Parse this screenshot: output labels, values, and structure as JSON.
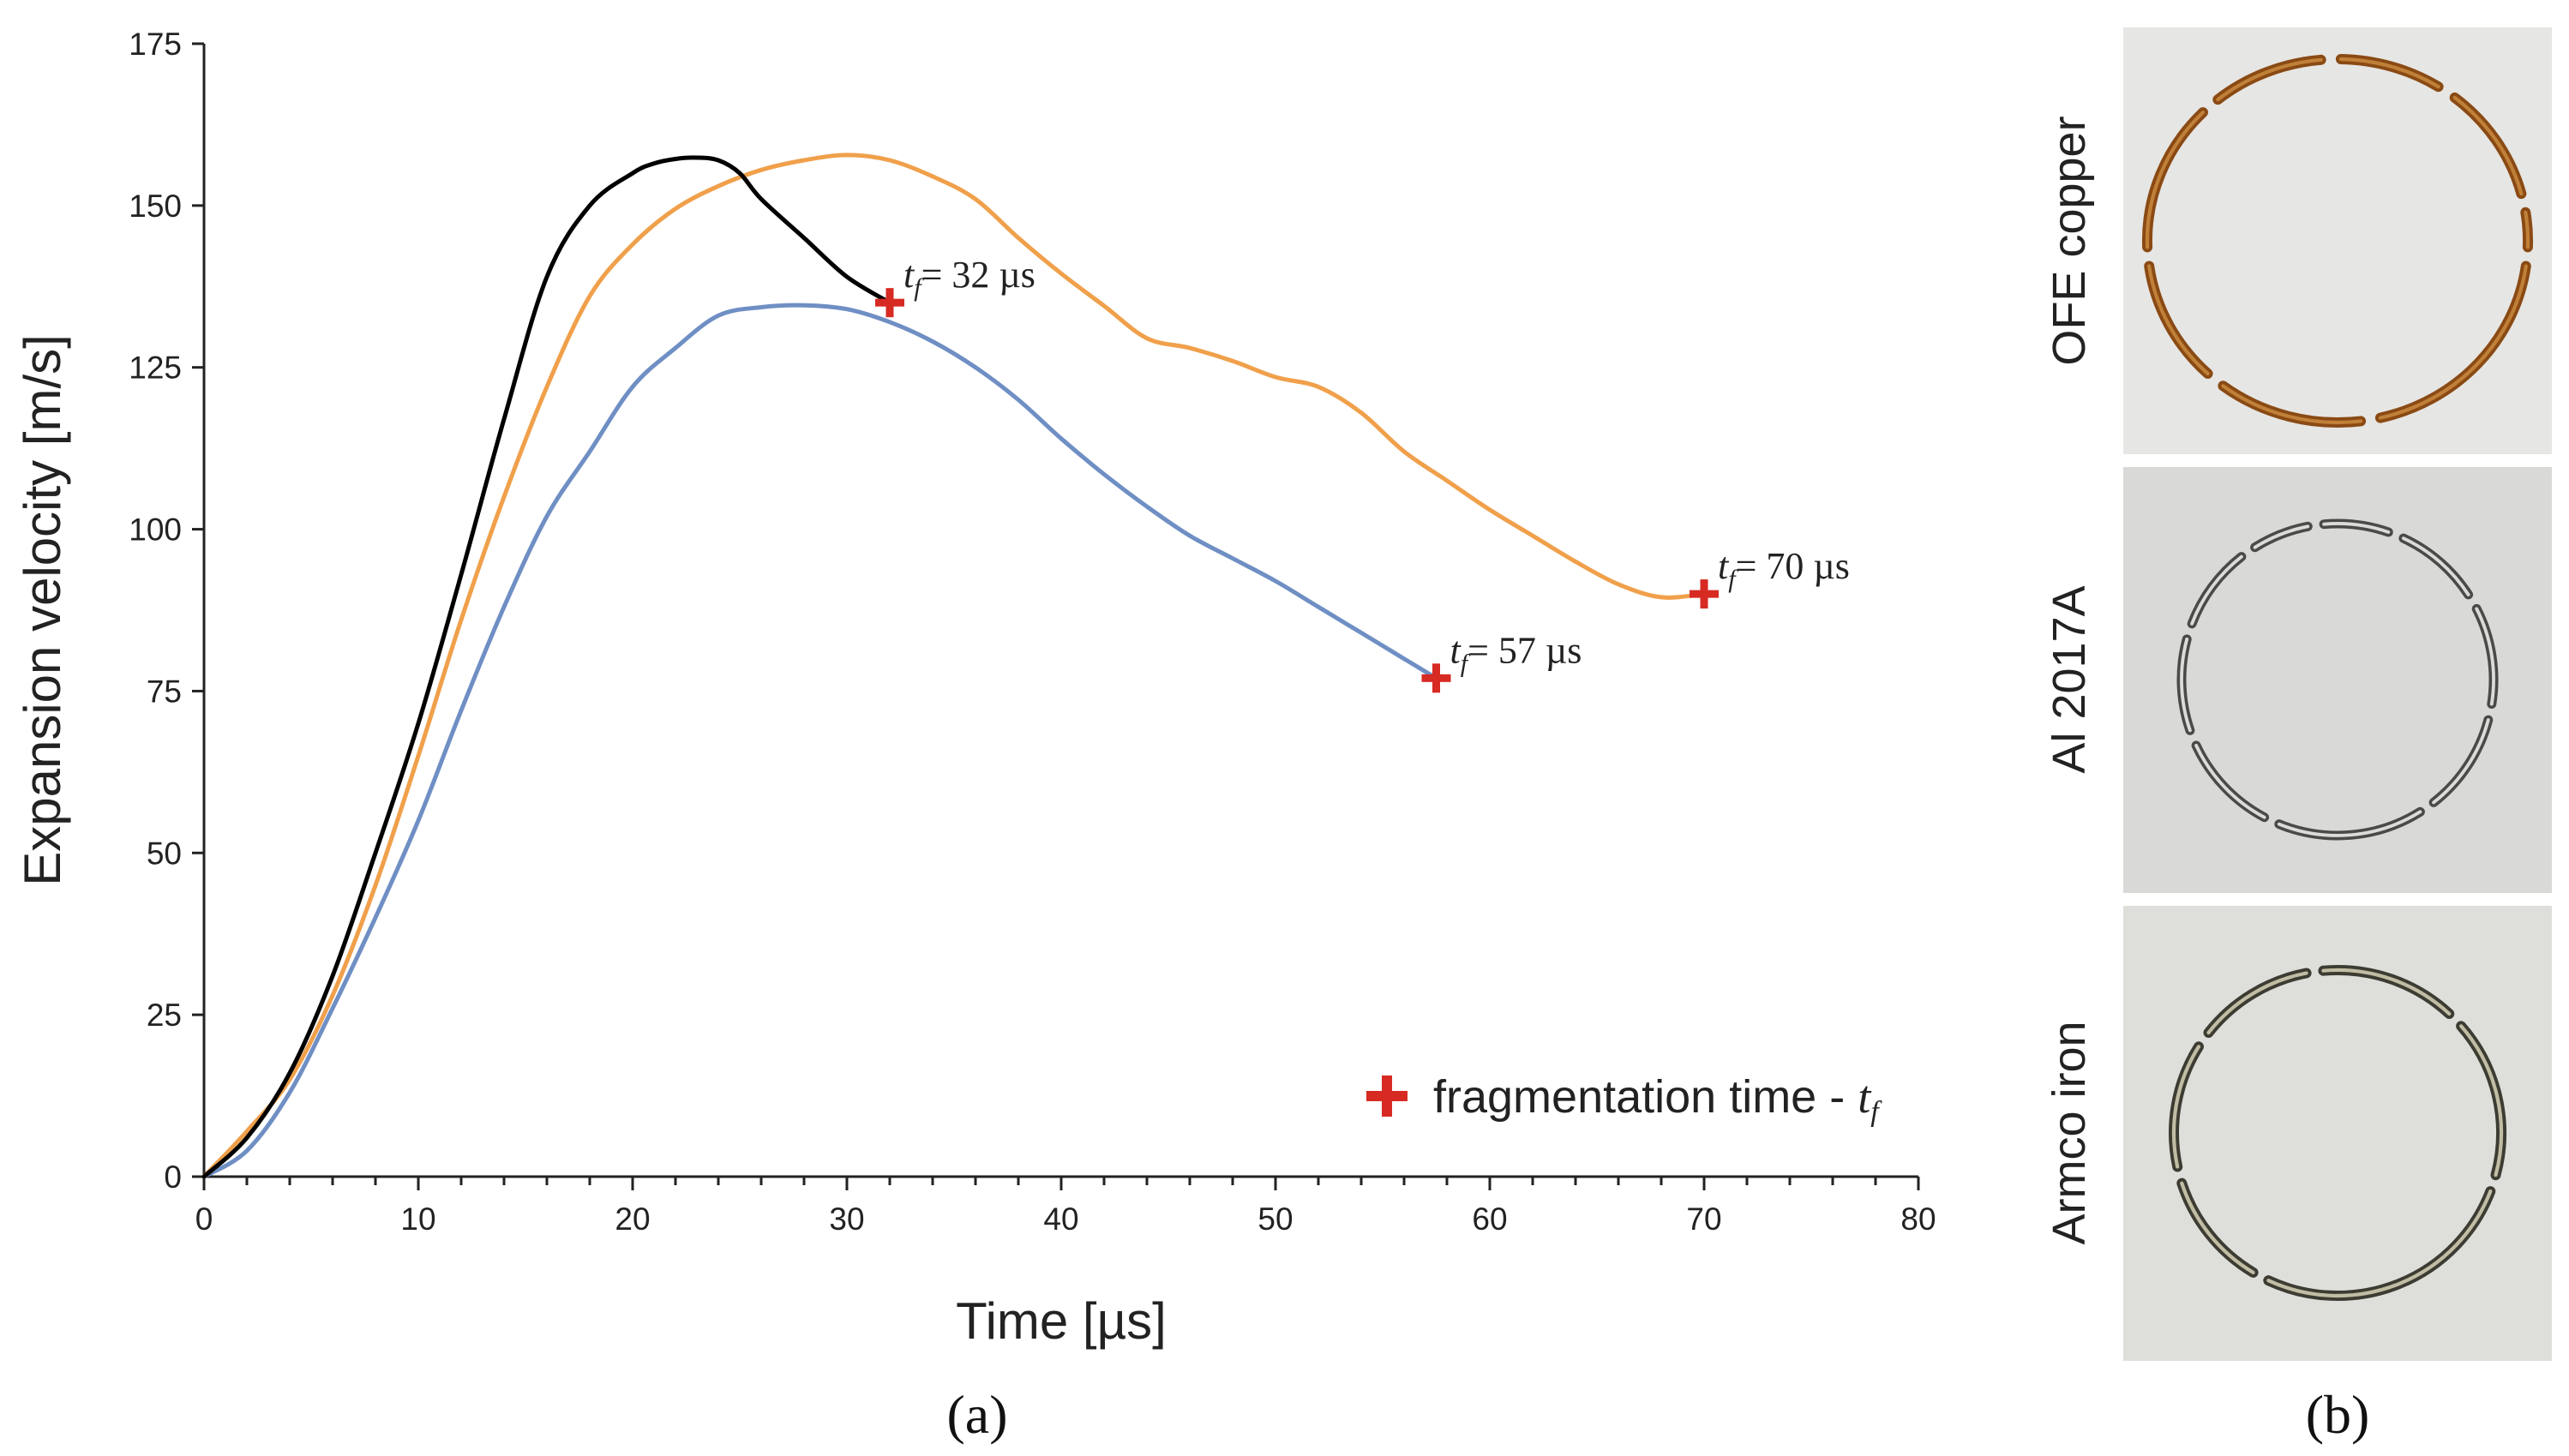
{
  "panel_labels": {
    "a": "(a)",
    "b": "(b)"
  },
  "chart_data": {
    "type": "line",
    "title": "",
    "xlabel": "Time [µs]",
    "ylabel": "Expansion velocity [m/s]",
    "xlim": [
      0,
      80
    ],
    "ylim": [
      0,
      175
    ],
    "xticks": [
      0,
      10,
      20,
      30,
      40,
      50,
      60,
      70,
      80
    ],
    "yticks": [
      0,
      25,
      50,
      75,
      100,
      125,
      150,
      175
    ],
    "xtick_labels": [
      "0",
      "10",
      "20",
      "30",
      "40",
      "50",
      "60",
      "70",
      "80"
    ],
    "ytick_labels": [
      "0",
      "25",
      "50",
      "75",
      "100",
      "125",
      "150",
      "175"
    ],
    "grid": false,
    "legend": {
      "position": "bottom-right",
      "marker": "+",
      "marker_color": "#d62a23",
      "label": "fragmentation time - ",
      "label_italic": "t",
      "label_sub": "f"
    },
    "series": [
      {
        "name": "OFE copper",
        "color": "#000000",
        "x": [
          0,
          2,
          4,
          6,
          8,
          10,
          12,
          14,
          16,
          18,
          20,
          21,
          22,
          23,
          24,
          25,
          26,
          28,
          30,
          32
        ],
        "y": [
          0,
          6,
          16,
          31,
          50,
          70,
          93,
          117,
          139,
          150,
          155,
          156.5,
          157.2,
          157.4,
          157,
          155,
          151,
          145,
          139,
          135
        ]
      },
      {
        "name": "Al 2017A",
        "color": "#f0a04b",
        "x": [
          0,
          2,
          4,
          6,
          8,
          10,
          12,
          14,
          16,
          18,
          20,
          22,
          24,
          26,
          28,
          30,
          32,
          34,
          36,
          38,
          40,
          42,
          44,
          46,
          48,
          50,
          52,
          54,
          56,
          58,
          60,
          62,
          64,
          66,
          68,
          70
        ],
        "y": [
          0,
          7,
          15,
          28,
          45,
          65,
          86,
          105,
          122,
          136,
          144,
          149.5,
          153,
          155.5,
          157,
          157.8,
          157,
          154.5,
          151,
          145,
          139.5,
          134.5,
          129.5,
          128,
          126,
          123.5,
          122,
          118,
          112,
          107.5,
          103,
          99,
          95,
          91.5,
          89.5,
          90
        ]
      },
      {
        "name": "Armco iron",
        "color": "#6f8fc4",
        "x": [
          0,
          2,
          4,
          6,
          8,
          10,
          12,
          14,
          16,
          18,
          20,
          22,
          24,
          26,
          28,
          30,
          32,
          34,
          36,
          38,
          40,
          42,
          44,
          46,
          48,
          50,
          52,
          54,
          56,
          57.5
        ],
        "y": [
          0,
          4,
          13,
          26,
          40,
          55,
          72,
          88,
          102,
          112,
          122,
          128,
          133,
          134.3,
          134.6,
          134,
          132,
          129,
          125,
          120,
          114,
          108.5,
          103.5,
          99,
          95.5,
          92,
          88,
          84,
          80,
          77
        ]
      }
    ],
    "annotations": [
      {
        "x": 32,
        "y": 135,
        "t": "t",
        "sub": "f",
        "text": "= 32 µs"
      },
      {
        "x": 57.5,
        "y": 77,
        "t": "t",
        "sub": "f",
        "text": "= 57 µs"
      },
      {
        "x": 70,
        "y": 90,
        "t": "t",
        "sub": "f",
        "text": "= 70 µs"
      }
    ]
  },
  "photos": [
    {
      "label": "OFE copper",
      "ring_color": "#8a4a14",
      "ring_highlight": "#c98a3e",
      "background": "#e6e6e4"
    },
    {
      "label": "Al 2017A",
      "ring_color": "#4a4a48",
      "ring_highlight": "#f4f4f2",
      "background": "#d9d9d7"
    },
    {
      "label": "Armco iron",
      "ring_color": "#3c3c32",
      "ring_highlight": "#d8d4b8",
      "background": "#dededb"
    }
  ]
}
